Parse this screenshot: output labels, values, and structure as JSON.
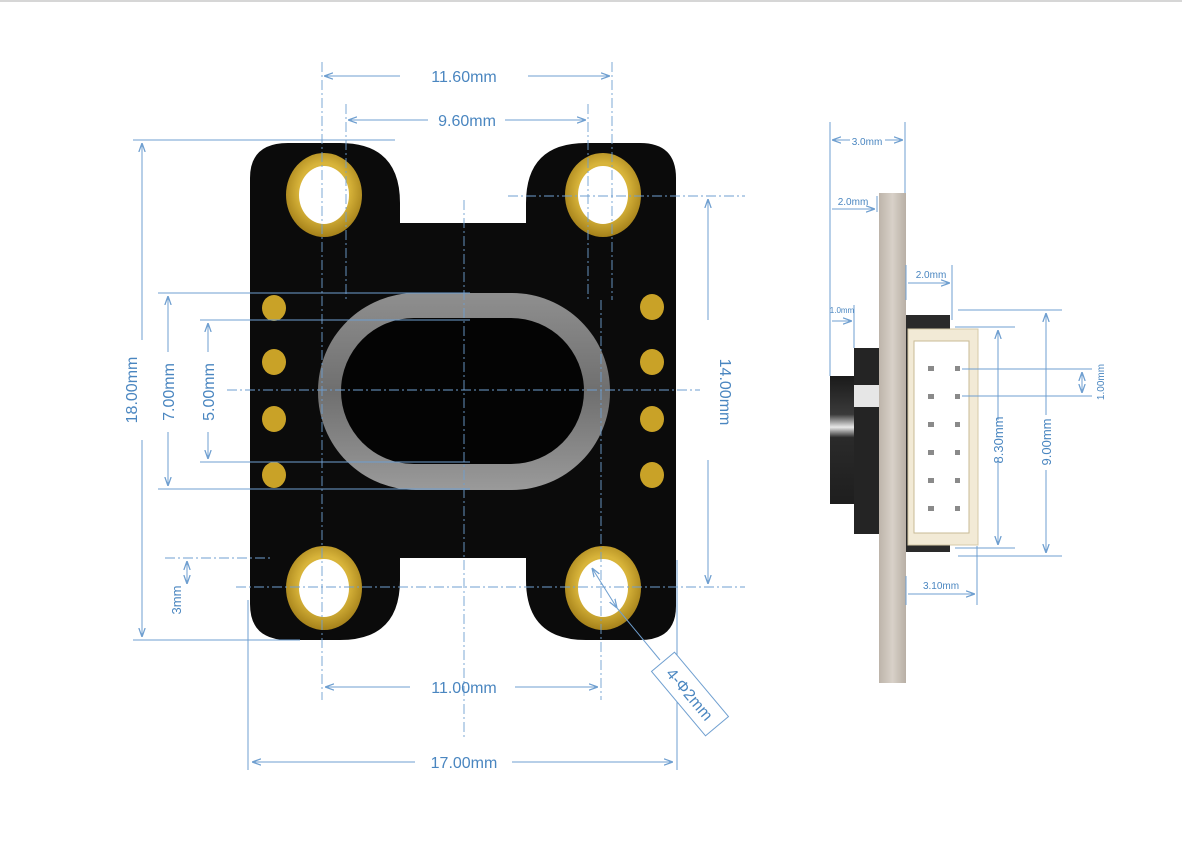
{
  "front_view": {
    "dims": {
      "mount_hole_outer_span": "11.60mm",
      "mount_hole_inner_span": "9.60mm",
      "board_height": "18.00mm",
      "slot_outer_height": "7.00mm",
      "slot_inner_height": "5.00mm",
      "hole_vertical_span": "14.00mm",
      "bottom_hole_offset": "3mm",
      "bottom_hole_span": "11.00mm",
      "board_width": "17.00mm",
      "hole_callout": "4-Φ2mm"
    }
  },
  "side_view": {
    "dims": {
      "total_depth": "3.0mm",
      "pcb_offset": "2.0mm",
      "connector_offset": "2.0mm",
      "knob_depth": "1.0mm",
      "pin_pitch": "1.00mm",
      "pin_row_span": "8.30mm",
      "connector_height": "9.00mm",
      "connector_depth": "3.10mm"
    }
  },
  "colors": {
    "dimension_lines": "#6f9fd0",
    "dimension_text": "#4a86c0",
    "pcb": "#0b0b0b",
    "gold_plating": "#c9a227",
    "connector_housing": "#f2ead6",
    "side_plate": "#cfc7bd"
  }
}
